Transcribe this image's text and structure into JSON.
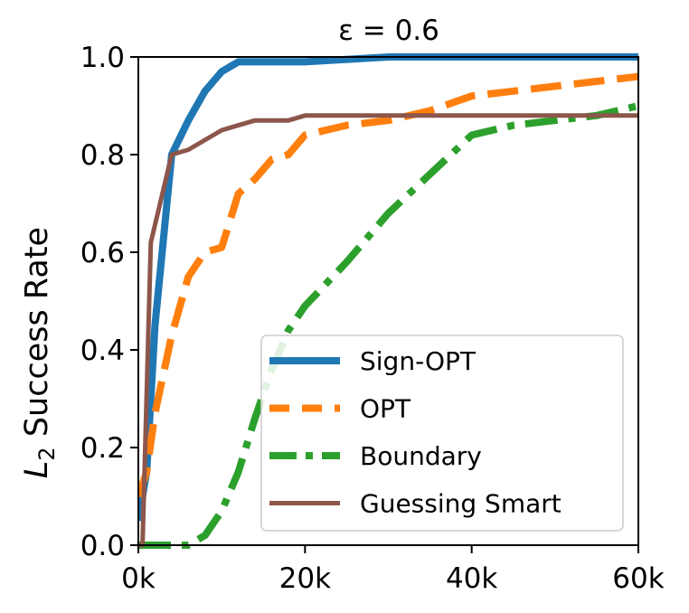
{
  "chart_data": {
    "type": "line",
    "title": "ε = 0.6",
    "xlabel": "",
    "ylabel": "L2 Success Rate",
    "ylabel_main": "L",
    "ylabel_sub": "2",
    "ylabel_rest": " Success Rate",
    "xlim": [
      0,
      60000
    ],
    "ylim": [
      0.0,
      1.0
    ],
    "xticks": [
      0,
      20000,
      40000,
      60000
    ],
    "xtick_labels": [
      "0k",
      "20k",
      "40k",
      "60k"
    ],
    "yticks": [
      0.0,
      0.2,
      0.4,
      0.6,
      0.8,
      1.0
    ],
    "ytick_labels": [
      "0.0",
      "0.2",
      "0.4",
      "0.6",
      "0.8",
      "1.0"
    ],
    "grid": false,
    "legend_position": "lower-right",
    "series": [
      {
        "name": "Sign-OPT",
        "color": "#1f77b4",
        "style": "solid",
        "x": [
          0,
          1000,
          2000,
          4000,
          6000,
          8000,
          10000,
          12000,
          20000,
          30000,
          40000,
          50000,
          60000
        ],
        "y": [
          0.05,
          0.15,
          0.45,
          0.8,
          0.87,
          0.93,
          0.97,
          0.99,
          0.99,
          1.0,
          1.0,
          1.0,
          1.0
        ]
      },
      {
        "name": "OPT",
        "color": "#ff7f0e",
        "style": "dashed",
        "x": [
          0,
          1000,
          2000,
          4000,
          6000,
          8000,
          10000,
          12000,
          14000,
          16000,
          18000,
          20000,
          25000,
          30000,
          35000,
          40000,
          45000,
          50000,
          55000,
          60000
        ],
        "y": [
          0.1,
          0.15,
          0.27,
          0.43,
          0.55,
          0.6,
          0.61,
          0.72,
          0.75,
          0.79,
          0.8,
          0.84,
          0.86,
          0.87,
          0.89,
          0.92,
          0.93,
          0.94,
          0.95,
          0.96
        ]
      },
      {
        "name": "Boundary",
        "color": "#2ca02c",
        "style": "dashdot",
        "x": [
          0,
          2000,
          4000,
          6000,
          8000,
          10000,
          12000,
          14000,
          16000,
          18000,
          20000,
          25000,
          30000,
          35000,
          40000,
          45000,
          50000,
          55000,
          60000
        ],
        "y": [
          0.0,
          0.0,
          0.0,
          0.0,
          0.02,
          0.07,
          0.15,
          0.26,
          0.36,
          0.44,
          0.49,
          0.58,
          0.68,
          0.76,
          0.84,
          0.86,
          0.87,
          0.88,
          0.9
        ]
      },
      {
        "name": "Guessing Smart",
        "color": "#8c564b",
        "style": "solid",
        "x": [
          0,
          500,
          1500,
          4000,
          6000,
          10000,
          14000,
          18000,
          20000,
          30000,
          40000,
          50000,
          60000
        ],
        "y": [
          0.0,
          0.0,
          0.62,
          0.8,
          0.81,
          0.85,
          0.87,
          0.87,
          0.88,
          0.88,
          0.88,
          0.88,
          0.88
        ]
      }
    ]
  }
}
